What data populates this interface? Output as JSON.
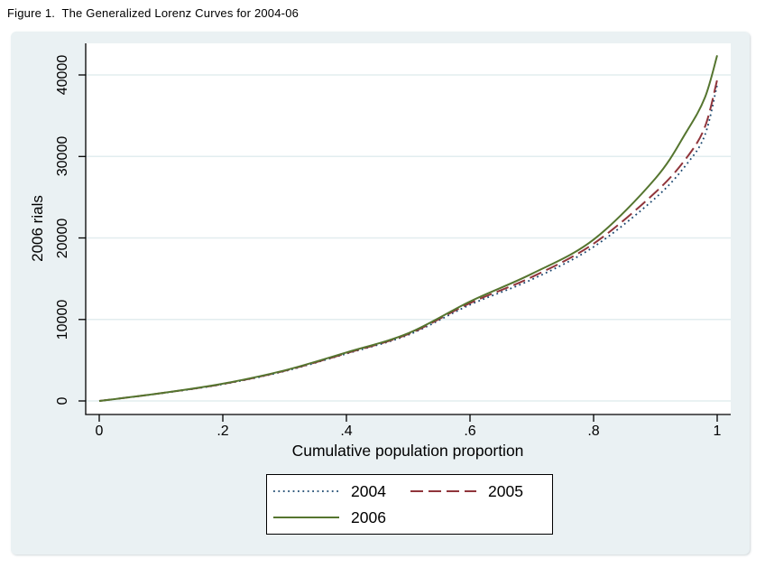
{
  "figure_title": "Figure 1.  The Generalized Lorenz Curves for 2004-06",
  "colors": {
    "background": "#eaf1f3",
    "plot_bg": "#ffffff",
    "grid": "#e2edef",
    "axis": "#000000",
    "series_2004": "#1a476f",
    "series_2005": "#90353b",
    "series_2006": "#55752f"
  },
  "chart_data": {
    "type": "line",
    "title": "Figure 1.  The Generalized Lorenz Curves for 2004-06",
    "xlabel": "Cumulative population proportion",
    "ylabel": "2006 rials",
    "xlim": [
      0,
      1
    ],
    "ylim": [
      0,
      42500
    ],
    "grid": true,
    "legend_position": "bottom",
    "x_ticks": [
      "0",
      ".2",
      ".4",
      ".6",
      ".8",
      "1"
    ],
    "x_tick_values": [
      0,
      0.2,
      0.4,
      0.6,
      0.8,
      1
    ],
    "y_ticks": [
      "0",
      "10000",
      "20000",
      "30000",
      "40000"
    ],
    "y_tick_values": [
      0,
      10000,
      20000,
      30000,
      40000
    ],
    "x": [
      0,
      0.1,
      0.2,
      0.3,
      0.4,
      0.5,
      0.6,
      0.7,
      0.8,
      0.9,
      0.95,
      0.98,
      1
    ],
    "series": [
      {
        "name": "2004",
        "color": "#1a476f",
        "style": "dotted",
        "values": [
          0,
          930,
          2050,
          3650,
          5800,
          8100,
          11800,
          14900,
          18900,
          24900,
          29000,
          32600,
          38800
        ]
      },
      {
        "name": "2005",
        "color": "#90353b",
        "style": "dashed",
        "values": [
          0,
          950,
          2080,
          3700,
          5850,
          8200,
          12000,
          15200,
          19300,
          25600,
          29800,
          33600,
          39400
        ]
      },
      {
        "name": "2006",
        "color": "#55752f",
        "style": "solid",
        "values": [
          0,
          950,
          2120,
          3750,
          5950,
          8300,
          12200,
          15600,
          19800,
          27300,
          33000,
          37200,
          42400
        ]
      }
    ]
  }
}
